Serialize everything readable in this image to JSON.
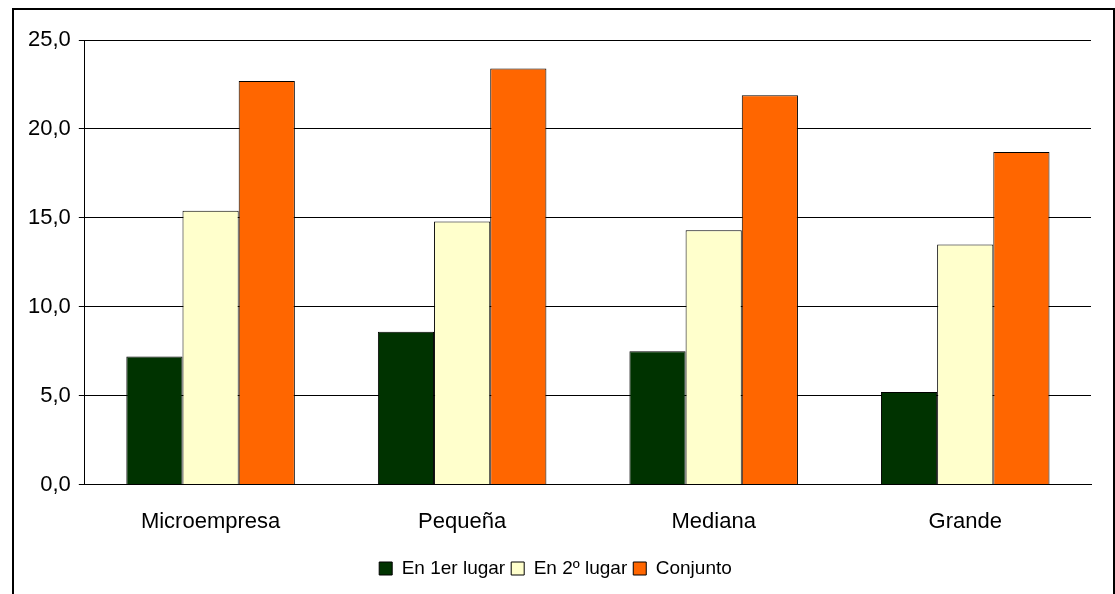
{
  "chart_data": {
    "type": "bar",
    "categories": [
      "Microempresa",
      "Pequeña",
      "Mediana",
      "Grande"
    ],
    "series": [
      {
        "name": "En 1er lugar",
        "color": "#003300",
        "values": [
          7.2,
          8.6,
          7.5,
          5.2
        ]
      },
      {
        "name": "En 2º lugar",
        "color": "#ffffcc",
        "values": [
          15.4,
          14.8,
          14.3,
          13.5
        ]
      },
      {
        "name": "Conjunto",
        "color": "#ff6600",
        "values": [
          22.7,
          23.4,
          21.9,
          18.7
        ]
      }
    ],
    "ylim": [
      0,
      25
    ],
    "yticks": [
      {
        "value": 0,
        "label": "0,0"
      },
      {
        "value": 5,
        "label": "5,0"
      },
      {
        "value": 10,
        "label": "10,0"
      },
      {
        "value": 15,
        "label": "15,0"
      },
      {
        "value": 20,
        "label": "20,0"
      },
      {
        "value": 25,
        "label": "25,0"
      }
    ],
    "grid": "y",
    "legend": "bottom"
  }
}
